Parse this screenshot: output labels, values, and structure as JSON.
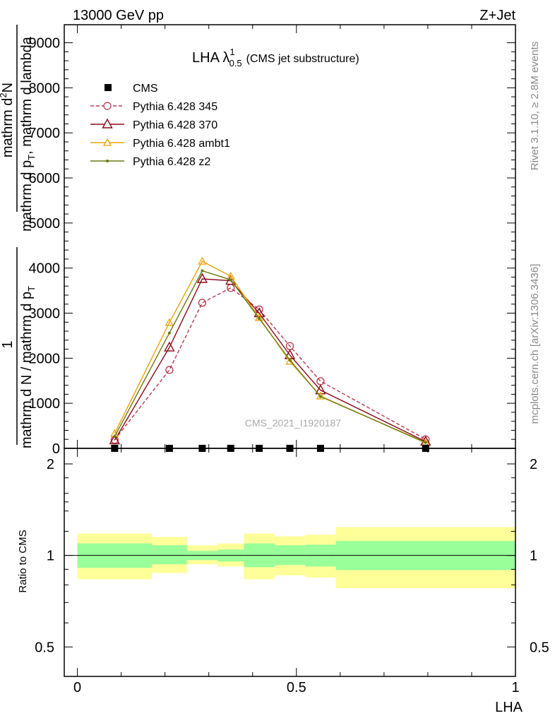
{
  "header": {
    "left": "13000 GeV pp",
    "right": "Z+Jet"
  },
  "side_labels": {
    "rivet": "Rivet 3.1.10, ≥ 2.8M events",
    "mcplots": "mcplots.cern.ch [arXiv:1306.3436]"
  },
  "chart_data": [
    {
      "type": "line",
      "title_main": "LHA λ",
      "title_sup": "1",
      "title_sub": "0.5",
      "title_suffix": "(CMS jet substructure)",
      "ylabel_num": "1",
      "ylabel_den1": "mathrm d N",
      "ylabel_den2": "mathrm d p",
      "ylabel_den_sub": "T",
      "ylabel_top1": "mathrm d",
      "ylabel_top_sup": "2",
      "ylabel_top2": "N",
      "ylabel_den3": "mathrm d p",
      "ylabel_den3_sub": "T",
      "ylabel_den4": "mathrm d lambda",
      "ylim": [
        0,
        9400
      ],
      "xlim": [
        -0.03,
        1.0
      ],
      "y_ticks": [
        0,
        1000,
        2000,
        3000,
        4000,
        5000,
        6000,
        7000,
        8000,
        9000
      ],
      "y_tick_labels": [
        "0",
        "1000",
        "2000",
        "3000",
        "4000",
        "5000",
        "6000",
        "7000",
        "8000",
        "9000"
      ],
      "watermark": "CMS_2021_I1920187",
      "data_points": {
        "name": "CMS",
        "x": [
          0.085,
          0.21,
          0.285,
          0.35,
          0.415,
          0.485,
          0.555,
          0.795
        ],
        "y": [
          0,
          0,
          0,
          0,
          0,
          0,
          0,
          0
        ]
      },
      "series": [
        {
          "name": "Pythia 6.428 345",
          "color": "#b5394d",
          "dashed": true,
          "marker": "circle",
          "x": [
            0.085,
            0.21,
            0.285,
            0.35,
            0.415,
            0.485,
            0.555,
            0.795
          ],
          "y": [
            190,
            1740,
            3230,
            3560,
            3080,
            2270,
            1490,
            200
          ]
        },
        {
          "name": "Pythia 6.428 370",
          "color": "#8b0a1a",
          "dashed": false,
          "marker": "triangle",
          "x": [
            0.085,
            0.21,
            0.285,
            0.35,
            0.415,
            0.485,
            0.555,
            0.795
          ],
          "y": [
            180,
            2240,
            3760,
            3720,
            3000,
            2070,
            1290,
            150
          ]
        },
        {
          "name": "Pythia 6.428 ambt1",
          "color": "#e8a30a",
          "dashed": false,
          "marker": "triangle-small",
          "x": [
            0.085,
            0.21,
            0.285,
            0.35,
            0.415,
            0.485,
            0.555,
            0.795
          ],
          "y": [
            330,
            2790,
            4150,
            3820,
            2900,
            1930,
            1160,
            120
          ]
        },
        {
          "name": "Pythia 6.428 z2",
          "color": "#6b7a10",
          "dashed": false,
          "marker": "dot",
          "x": [
            0.085,
            0.21,
            0.285,
            0.35,
            0.415,
            0.485,
            0.555,
            0.795
          ],
          "y": [
            260,
            2560,
            3940,
            3740,
            2880,
            1960,
            1150,
            130
          ]
        }
      ]
    },
    {
      "type": "area",
      "ylabel": "Ratio to CMS",
      "xlabel": "LHA",
      "ylim": [
        0.4,
        2.25
      ],
      "xlim": [
        -0.03,
        1.0
      ],
      "y_tick_labels": [
        "0.5",
        "1",
        "2"
      ],
      "y_ticks": [
        0.5,
        1,
        2
      ],
      "x_ticks": [
        0,
        0.5,
        1
      ],
      "x_tick_labels": [
        "0",
        "0.5",
        "1"
      ],
      "bins": [
        0,
        0.17,
        0.25,
        0.32,
        0.38,
        0.45,
        0.52,
        0.59,
        1.0
      ],
      "inner_band_low": [
        0.91,
        0.935,
        0.965,
        0.955,
        0.915,
        0.93,
        0.92,
        0.895
      ],
      "inner_band_high": [
        1.095,
        1.08,
        1.035,
        1.045,
        1.095,
        1.08,
        1.085,
        1.115
      ],
      "outer_band_low": [
        0.835,
        0.875,
        0.935,
        0.92,
        0.835,
        0.86,
        0.845,
        0.78
      ],
      "outer_band_high": [
        1.18,
        1.15,
        1.08,
        1.095,
        1.18,
        1.155,
        1.17,
        1.24
      ],
      "inner_color": "#99ff99",
      "outer_color": "#ffff99"
    }
  ]
}
